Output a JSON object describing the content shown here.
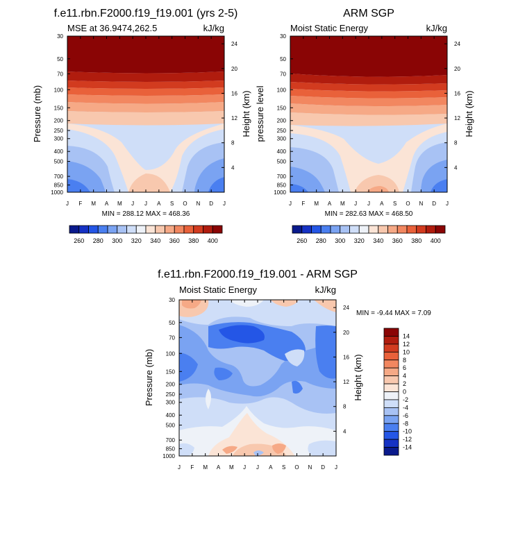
{
  "chart_data": [
    {
      "type": "heatmap",
      "title": "f.e11.rbn.F2000.f19_f19.001 (yrs 2-5)",
      "left_string": "MSE at 36.9474,262.5",
      "right_string": "kJ/kg",
      "ylabel": "Pressure (mb)",
      "ylabel_right": "Height (km)",
      "x_ticks": [
        "J",
        "F",
        "M",
        "A",
        "M",
        "J",
        "J",
        "A",
        "S",
        "O",
        "N",
        "D",
        "J"
      ],
      "y_ticks": [
        "30",
        "50",
        "70",
        "100",
        "150",
        "200",
        "250",
        "300",
        "400",
        "500",
        "700",
        "850",
        "1000"
      ],
      "y_right_ticks": [
        "24",
        "20",
        "16",
        "12",
        "8",
        "4"
      ],
      "stats": "MIN = 288.12 MAX = 468.36",
      "colorbar_labels": [
        "260",
        "280",
        "300",
        "320",
        "340",
        "360",
        "380",
        "400"
      ],
      "colorbar_colors": [
        "#0a1a8c",
        "#1632c4",
        "#2456e6",
        "#4a7ff0",
        "#7aa3f2",
        "#a8c2f4",
        "#cfdef8",
        "#eef2f8",
        "#fbe4d6",
        "#f8c8ae",
        "#f6a986",
        "#f28760",
        "#e9613a",
        "#d23b1f",
        "#b01c0e",
        "#8a0505"
      ],
      "zones": [
        {
          "y": [
            0,
            0.22
          ],
          "color": "#8a0505"
        },
        {
          "y": [
            0.22,
            0.28
          ],
          "color": "#b01c0e"
        },
        {
          "y": [
            0.28,
            0.33
          ],
          "color": "#d23b1f"
        },
        {
          "y": [
            0.33,
            0.39
          ],
          "color": "#e9613a"
        },
        {
          "y": [
            0.39,
            0.44
          ],
          "color": "#f28760"
        },
        {
          "y": [
            0.44,
            0.5
          ],
          "color": "#f6a986"
        },
        {
          "y": [
            0.5,
            0.58
          ],
          "color": "#f8c8ae"
        },
        {
          "y": [
            0.58,
            1.0
          ],
          "color": "#cfdef8"
        }
      ]
    },
    {
      "type": "heatmap",
      "title": "ARM SGP",
      "left_string": "Moist Static Energy",
      "right_string": "kJ/kg",
      "ylabel": "pressure level",
      "ylabel_right": "Height (km)",
      "x_ticks": [
        "J",
        "F",
        "M",
        "A",
        "M",
        "J",
        "J",
        "A",
        "S",
        "O",
        "N",
        "D",
        "J"
      ],
      "y_ticks": [
        "30",
        "50",
        "70",
        "100",
        "150",
        "200",
        "250",
        "300",
        "400",
        "500",
        "700",
        "850",
        "1000"
      ],
      "y_right_ticks": [
        "24",
        "20",
        "16",
        "12",
        "8",
        "4"
      ],
      "stats": "MIN = 282.63 MAX = 468.50",
      "colorbar_labels": [
        "260",
        "280",
        "300",
        "320",
        "340",
        "360",
        "380",
        "400"
      ],
      "colorbar_colors": [
        "#0a1a8c",
        "#1632c4",
        "#2456e6",
        "#4a7ff0",
        "#7aa3f2",
        "#a8c2f4",
        "#cfdef8",
        "#eef2f8",
        "#fbe4d6",
        "#f8c8ae",
        "#f6a986",
        "#f28760",
        "#e9613a",
        "#d23b1f",
        "#b01c0e",
        "#8a0505"
      ]
    },
    {
      "type": "heatmap",
      "title": "f.e11.rbn.F2000.f19_f19.001 - ARM SGP",
      "left_string": "Moist Static Energy",
      "right_string": "kJ/kg",
      "ylabel": "Pressure (mb)",
      "ylabel_right": "Height (km)",
      "x_ticks": [
        "J",
        "F",
        "M",
        "A",
        "M",
        "J",
        "J",
        "A",
        "S",
        "O",
        "N",
        "D",
        "J"
      ],
      "y_ticks": [
        "30",
        "50",
        "70",
        "100",
        "150",
        "200",
        "250",
        "300",
        "400",
        "500",
        "700",
        "850",
        "1000"
      ],
      "y_right_ticks": [
        "24",
        "20",
        "16",
        "12",
        "8",
        "4"
      ],
      "stats": "MIN =  -9.44 MAX =   7.09",
      "colorbar_labels": [
        "14",
        "12",
        "10",
        "8",
        "6",
        "4",
        "2",
        "0",
        "-2",
        "-4",
        "-6",
        "-8",
        "-10",
        "-12",
        "-14"
      ],
      "colorbar_colors": [
        "#8a0505",
        "#b01c0e",
        "#d23b1f",
        "#e9613a",
        "#f28760",
        "#f6a986",
        "#f8c8ae",
        "#fbe4d6",
        "#eef2f8",
        "#cfdef8",
        "#a8c2f4",
        "#7aa3f2",
        "#4a7ff0",
        "#2456e6",
        "#1632c4",
        "#0a1a8c"
      ]
    }
  ]
}
